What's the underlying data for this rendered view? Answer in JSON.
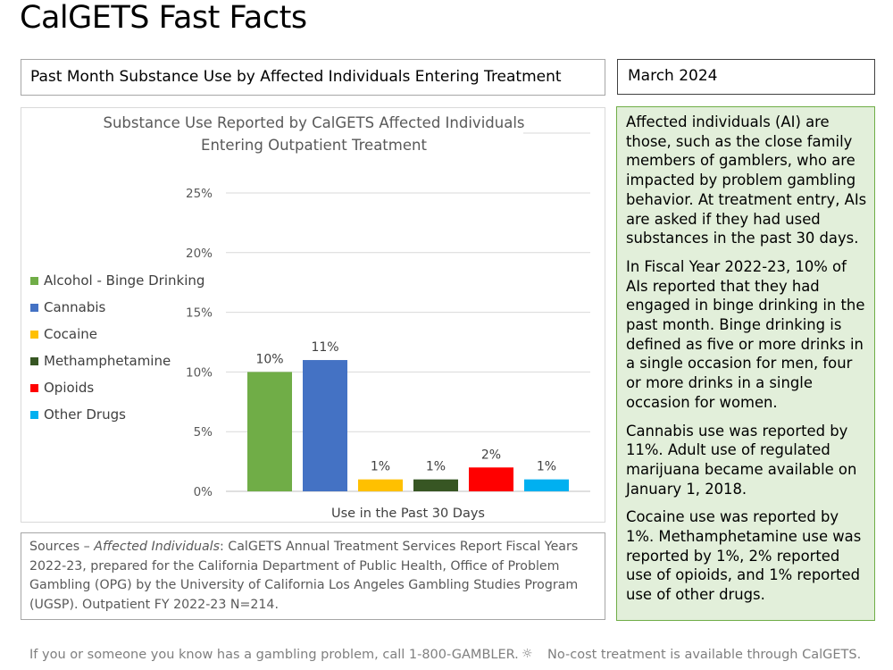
{
  "page": {
    "title": "CalGETS Fast Facts",
    "subtitle": "Past Month Substance Use by Affected Individuals Entering Treatment",
    "date": "March 2024"
  },
  "colors": {
    "box_border": "#a6a6a6",
    "side_bg": "#e2efda",
    "side_border": "#70ad47"
  },
  "chart_data": {
    "type": "bar",
    "title_line1": "Substance Use Reported by CalGETS Affected Individuals",
    "title_line2": "Entering Outpatient Treatment",
    "xlabel": "Use in the Past 30 Days",
    "ylabel": "",
    "ylim": [
      0,
      25
    ],
    "yticks": [
      "0%",
      "5%",
      "10%",
      "15%",
      "20%",
      "25%"
    ],
    "grid": true,
    "legend_position": "left",
    "series": [
      {
        "name": "Alcohol - Binge Drinking",
        "value": 10,
        "label": "10%",
        "color": "#70ad47"
      },
      {
        "name": "Cannabis",
        "value": 11,
        "label": "11%",
        "color": "#4472c4"
      },
      {
        "name": "Cocaine",
        "value": 1,
        "label": "1%",
        "color": "#ffc000"
      },
      {
        "name": "Methamphetamine",
        "value": 1,
        "label": "1%",
        "color": "#375623"
      },
      {
        "name": "Opioids",
        "value": 2,
        "label": "2%",
        "color": "#ff0000"
      },
      {
        "name": "Other Drugs",
        "value": 1,
        "label": "1%",
        "color": "#00b0f0"
      }
    ]
  },
  "sources": {
    "prefix": "Sources – ",
    "italic": "Affected Individuals",
    "rest": ": CalGETS Annual Treatment Services Report Fiscal Years 2022-23, prepared for the California Department of Public Health, Office of Problem Gambling (OPG) by the University of California Los Angeles Gambling Studies Program (UGSP). Outpatient FY 2022-23 N=214."
  },
  "side": {
    "p1": "Affected individuals (AI) are those, such as the close family members of gamblers, who are impacted by problem gambling behavior. At treatment entry, AIs are asked if they had used substances in the past 30 days.",
    "p2": "In Fiscal Year 2022-23, 10% of AIs reported that they had engaged in binge drinking in the past month. Binge drinking is defined as five or more drinks in a single occasion for men, four or more drinks in a single occasion for women.",
    "p3": "Cannabis use was reported by 11%. Adult use of regulated marijuana became available on January 1, 2018.",
    "p4": "Cocaine use was reported by 1%. Methamphetamine use was reported by 1%, 2% reported use of opioids, and 1% reported use of other drugs."
  },
  "footer": {
    "left": "If you or someone you know has a gambling problem, call 1-800-GAMBLER.",
    "separator": "☼",
    "right": "No-cost treatment is available through CalGETS."
  }
}
